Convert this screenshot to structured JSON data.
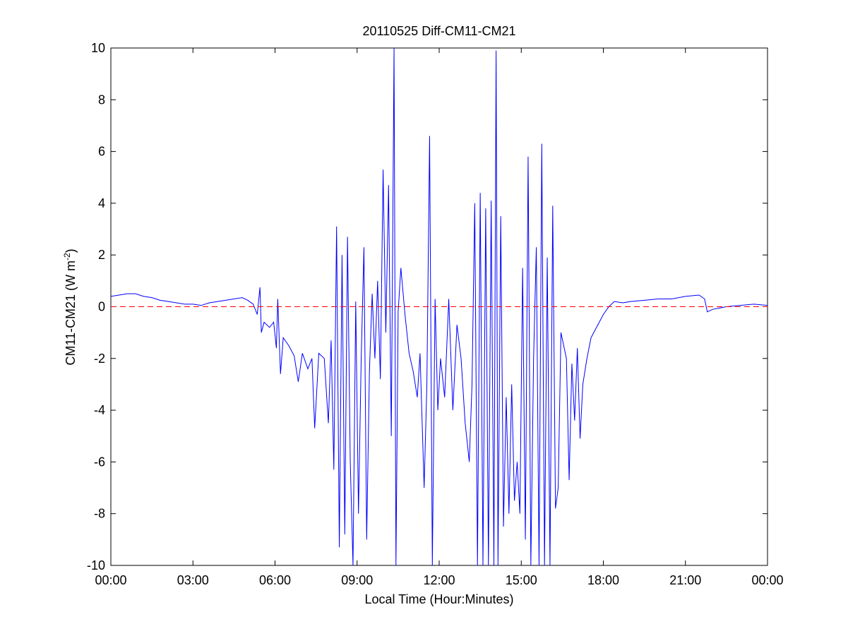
{
  "chart_data": {
    "type": "line",
    "title": "20110525 Diff-CM11-CM21",
    "xlabel": "Local Time (Hour:Minutes)",
    "ylabel": {
      "text": "CM11-CM21 (W m",
      "sup": "-2",
      "end": ")"
    },
    "x": [
      0,
      0.3,
      0.6,
      0.9,
      1.2,
      1.5,
      1.8,
      2.1,
      2.4,
      2.7,
      3.0,
      3.3,
      3.6,
      3.9,
      4.2,
      4.5,
      4.8,
      5.0,
      5.2,
      5.35,
      5.45,
      5.5,
      5.6,
      5.8,
      5.95,
      6.05,
      6.1,
      6.2,
      6.3,
      6.5,
      6.7,
      6.85,
      7.0,
      7.2,
      7.35,
      7.45,
      7.6,
      7.8,
      7.95,
      8.05,
      8.15,
      8.25,
      8.35,
      8.45,
      8.55,
      8.65,
      8.75,
      8.85,
      8.95,
      9.05,
      9.15,
      9.25,
      9.35,
      9.45,
      9.55,
      9.65,
      9.75,
      9.85,
      9.95,
      10.05,
      10.15,
      10.25,
      10.35,
      10.42,
      10.5,
      10.6,
      10.75,
      10.9,
      11.05,
      11.2,
      11.3,
      11.45,
      11.55,
      11.65,
      11.75,
      11.85,
      11.95,
      12.05,
      12.2,
      12.35,
      12.5,
      12.65,
      12.8,
      12.95,
      13.1,
      13.2,
      13.3,
      13.4,
      13.5,
      13.6,
      13.7,
      13.8,
      13.9,
      14.0,
      14.08,
      14.15,
      14.25,
      14.35,
      14.45,
      14.55,
      14.65,
      14.75,
      14.85,
      14.95,
      15.05,
      15.15,
      15.25,
      15.35,
      15.45,
      15.55,
      15.65,
      15.75,
      15.85,
      15.95,
      16.05,
      16.15,
      16.25,
      16.35,
      16.45,
      16.55,
      16.65,
      16.75,
      16.85,
      16.95,
      17.05,
      17.15,
      17.25,
      17.4,
      17.55,
      17.7,
      17.85,
      18.0,
      18.2,
      18.4,
      18.7,
      19.0,
      19.5,
      20.0,
      20.5,
      21.0,
      21.5,
      21.7,
      21.8,
      22.0,
      22.5,
      23.0,
      23.5,
      24.0
    ],
    "series": [
      {
        "color": "#0000ff",
        "values": [
          0.4,
          0.45,
          0.5,
          0.5,
          0.4,
          0.35,
          0.25,
          0.2,
          0.15,
          0.1,
          0.1,
          0.05,
          0.15,
          0.2,
          0.25,
          0.3,
          0.35,
          0.25,
          0.1,
          -0.3,
          0.75,
          -1.0,
          -0.6,
          -0.8,
          -0.6,
          -1.6,
          0.3,
          -2.6,
          -1.2,
          -1.5,
          -1.9,
          -2.9,
          -1.8,
          -2.4,
          -2.0,
          -4.7,
          -1.8,
          -2.0,
          -4.5,
          -1.3,
          -6.3,
          3.1,
          -9.3,
          2.0,
          -8.8,
          2.7,
          -6.0,
          -10,
          0.2,
          -8.0,
          -2.0,
          2.3,
          -9.0,
          -2.5,
          0.5,
          -2.0,
          1.0,
          -2.8,
          5.3,
          -1.0,
          4.7,
          -5.0,
          10,
          -10,
          -0.2,
          1.5,
          -0.3,
          -1.8,
          -2.5,
          -3.5,
          -1.8,
          -7.0,
          -3.0,
          6.6,
          -10,
          0.3,
          -4.0,
          -2.0,
          -3.5,
          0.3,
          -4.0,
          -0.7,
          -2.0,
          -4.5,
          -6.0,
          -3.0,
          4.0,
          -10,
          4.4,
          -10,
          3.8,
          -10,
          4.1,
          -10,
          9.9,
          -10,
          3.5,
          -8.5,
          -3.5,
          -8.0,
          -3.0,
          -7.5,
          -6.0,
          -8.0,
          1.5,
          -9.0,
          5.8,
          -10,
          -2.0,
          2.3,
          -10,
          6.3,
          -10,
          1.9,
          -10,
          3.9,
          -7.8,
          -7.0,
          -1.0,
          -1.5,
          -2.0,
          -6.7,
          -2.2,
          -4.4,
          -1.6,
          -5.1,
          -3.0,
          -2.0,
          -1.2,
          -0.9,
          -0.6,
          -0.3,
          0.0,
          0.2,
          0.15,
          0.2,
          0.25,
          0.3,
          0.3,
          0.4,
          0.45,
          0.3,
          -0.2,
          -0.1,
          0.0,
          0.05,
          0.1,
          0.05
        ]
      }
    ],
    "reference_line": {
      "value": 0,
      "color": "#ff0000",
      "dashed": true
    },
    "xlim": [
      0,
      24
    ],
    "xticks": [
      {
        "value": 0,
        "label": "00:00"
      },
      {
        "value": 3,
        "label": "03:00"
      },
      {
        "value": 6,
        "label": "06:00"
      },
      {
        "value": 9,
        "label": "09:00"
      },
      {
        "value": 12,
        "label": "12:00"
      },
      {
        "value": 15,
        "label": "15:00"
      },
      {
        "value": 18,
        "label": "18:00"
      },
      {
        "value": 21,
        "label": "21:00"
      },
      {
        "value": 24,
        "label": "00:00"
      }
    ],
    "ylim": [
      -10,
      10
    ],
    "yticks": [
      -10,
      -8,
      -6,
      -4,
      -2,
      0,
      2,
      4,
      6,
      8,
      10
    ],
    "grid": false
  }
}
